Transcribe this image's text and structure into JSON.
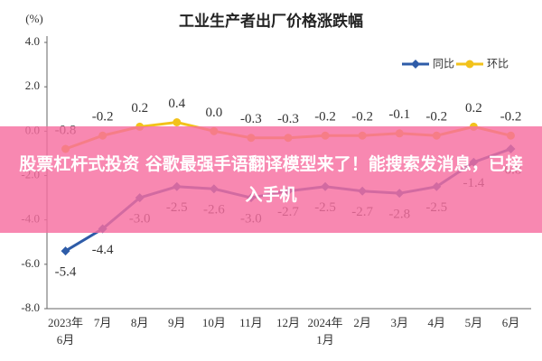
{
  "chart_data": {
    "type": "line",
    "title": "工业生产者出厂价格涨跌幅",
    "y_unit": "(%)",
    "categories": [
      "2023年6月",
      "7月",
      "8月",
      "9月",
      "10月",
      "11月",
      "12月",
      "2024年1月",
      "2月",
      "3月",
      "4月",
      "5月",
      "6月"
    ],
    "series": [
      {
        "name": "同比",
        "color": "#2e5ca8",
        "marker": "diamond",
        "values": [
          -5.4,
          -4.4,
          -3.0,
          -2.5,
          -2.6,
          -3.0,
          -2.7,
          -2.5,
          -2.7,
          -2.8,
          -2.5,
          -1.4,
          -0.8
        ],
        "value_labels": [
          "-5.4",
          "-4.4",
          "-3.0",
          "-2.5",
          "-2.6",
          "-3.0",
          "-2.7",
          "-2.5",
          "-2.7",
          "-2.8",
          "-2.5",
          "-1.4",
          "-0.8"
        ]
      },
      {
        "name": "环比",
        "color": "#f2c21b",
        "marker": "circle",
        "values": [
          -0.8,
          -0.2,
          0.2,
          0.4,
          0.0,
          -0.3,
          -0.3,
          -0.2,
          -0.2,
          -0.1,
          -0.2,
          0.2,
          -0.2
        ],
        "value_labels": [
          "-0.8",
          "-0.2",
          "0.2",
          "0.4",
          "0.0",
          "-0.3",
          "-0.3",
          "-0.2",
          "-0.2",
          "-0.1",
          "-0.2",
          "0.2",
          "-0.2"
        ]
      }
    ],
    "ylim": [
      -8,
      4
    ],
    "yticks": [
      {
        "value": 4,
        "label": "4.0"
      },
      {
        "value": 2,
        "label": "2.0"
      },
      {
        "value": 0,
        "label": "0.0"
      },
      {
        "value": -2,
        "label": "-2.0"
      },
      {
        "value": -4,
        "label": "-4.0"
      },
      {
        "value": -6,
        "label": "-6.0"
      },
      {
        "value": -8,
        "label": "-8.0"
      }
    ],
    "grid": false,
    "legend": "top-right"
  },
  "banner_text": "股票杠杆式投资 谷歌最强手语翻译模型来了！能搜索发消息，已接入手机"
}
